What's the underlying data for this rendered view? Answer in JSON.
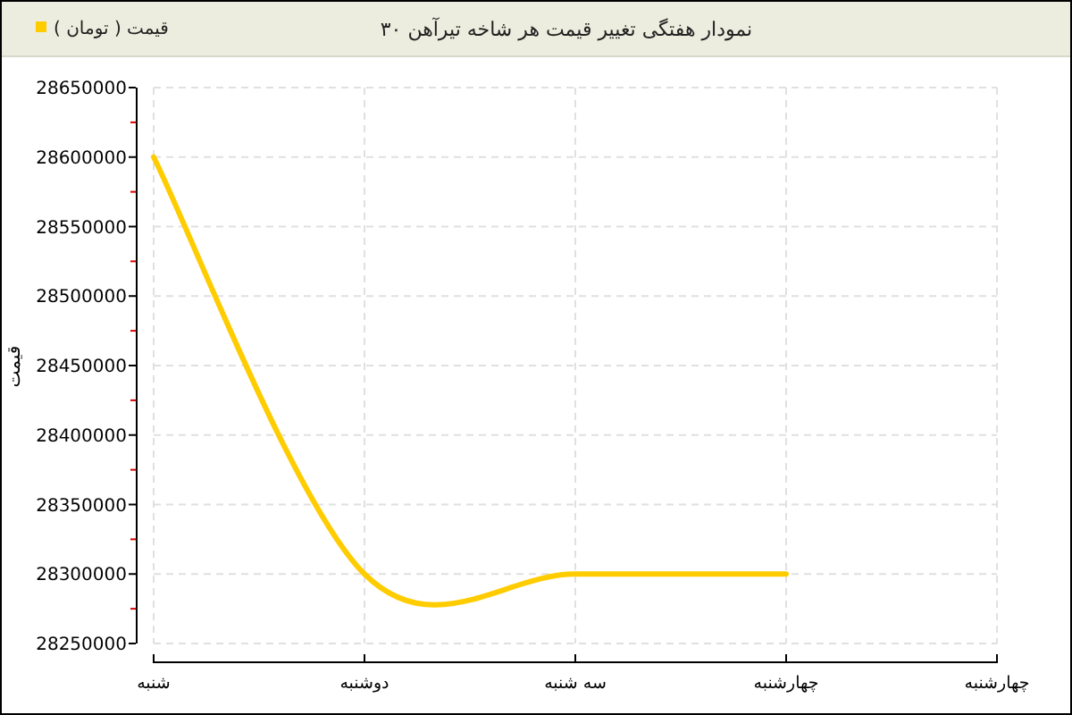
{
  "chart_data": {
    "type": "line",
    "title": "نمودار هفتگی تغییر قیمت هر شاخه تیرآهن ۳۰",
    "ylabel": "قیمت",
    "categories": [
      "شنبه",
      "دوشنبه",
      "سه شنبه",
      "چهارشنبه",
      "چهارشنبه"
    ],
    "series": [
      {
        "name": "قیمت ( تومان )",
        "color": "#ffcc00",
        "values": [
          28600000,
          28300000,
          28300000,
          28300000,
          null
        ]
      }
    ],
    "ylim": [
      28250000,
      28650000
    ],
    "yticks": [
      28250000,
      {
        "value": 28275000,
        "label": null
      },
      28300000,
      {
        "value": 28325000,
        "label": null
      },
      28350000,
      {
        "value": 28375000,
        "label": null
      },
      28400000,
      {
        "value": 28425000,
        "label": null
      },
      28450000,
      {
        "value": 28475000,
        "label": null
      },
      28500000,
      {
        "value": 28525000,
        "label": null
      },
      28550000,
      {
        "value": 28575000,
        "label": null
      },
      28600000,
      {
        "value": 28625000,
        "label": null
      },
      28650000
    ],
    "grid": true,
    "legend": "top left"
  }
}
